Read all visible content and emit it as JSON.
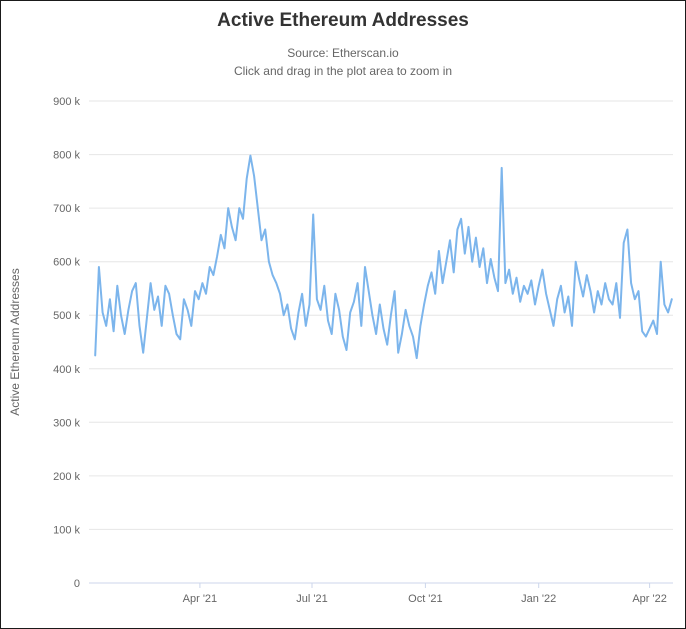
{
  "title": "Active Ethereum Addresses",
  "colors": {
    "line": "#7cb5ec",
    "grid": "#e6e6e6",
    "axis": "#ccd6eb",
    "title_text": "#333333",
    "label_text": "#666666",
    "background": "#ffffff"
  },
  "chart_data": {
    "type": "line",
    "title": "Active Ethereum Addresses",
    "subtitle": [
      "Source: Etherscan.io",
      "Click and drag in the plot area to zoom in"
    ],
    "xlabel": "",
    "ylabel": "Active Ethereum Addresses",
    "unit": "thousands of addresses (values below are in k)",
    "legend": "none",
    "grid": true,
    "ylim": [
      0,
      900
    ],
    "yticks": [
      {
        "value": 0,
        "label": "0"
      },
      {
        "value": 100,
        "label": "100 k"
      },
      {
        "value": 200,
        "label": "200 k"
      },
      {
        "value": 300,
        "label": "300 k"
      },
      {
        "value": 400,
        "label": "400 k"
      },
      {
        "value": 500,
        "label": "500 k"
      },
      {
        "value": 600,
        "label": "600 k"
      },
      {
        "value": 700,
        "label": "700 k"
      },
      {
        "value": 800,
        "label": "800 k"
      },
      {
        "value": 900,
        "label": "900 k"
      }
    ],
    "x_range": [
      "2021-01-01",
      "2022-04-20"
    ],
    "xticks": [
      {
        "date": "2021-04-01",
        "label": "Apr '21"
      },
      {
        "date": "2021-07-01",
        "label": "Jul '21"
      },
      {
        "date": "2021-10-01",
        "label": "Oct '21"
      },
      {
        "date": "2022-01-01",
        "label": "Jan '22"
      },
      {
        "date": "2022-04-01",
        "label": "Apr '22"
      }
    ],
    "series": [
      {
        "name": "Active Ethereum Addresses",
        "points": [
          [
            "2021-01-06",
            425
          ],
          [
            "2021-01-09",
            590
          ],
          [
            "2021-01-12",
            505
          ],
          [
            "2021-01-15",
            480
          ],
          [
            "2021-01-18",
            530
          ],
          [
            "2021-01-21",
            470
          ],
          [
            "2021-01-24",
            555
          ],
          [
            "2021-01-27",
            500
          ],
          [
            "2021-01-30",
            465
          ],
          [
            "2021-02-02",
            510
          ],
          [
            "2021-02-05",
            545
          ],
          [
            "2021-02-08",
            560
          ],
          [
            "2021-02-11",
            480
          ],
          [
            "2021-02-14",
            430
          ],
          [
            "2021-02-17",
            495
          ],
          [
            "2021-02-20",
            560
          ],
          [
            "2021-02-23",
            510
          ],
          [
            "2021-02-26",
            535
          ],
          [
            "2021-03-01",
            480
          ],
          [
            "2021-03-04",
            555
          ],
          [
            "2021-03-07",
            540
          ],
          [
            "2021-03-10",
            500
          ],
          [
            "2021-03-13",
            465
          ],
          [
            "2021-03-16",
            455
          ],
          [
            "2021-03-19",
            530
          ],
          [
            "2021-03-22",
            510
          ],
          [
            "2021-03-25",
            480
          ],
          [
            "2021-03-28",
            545
          ],
          [
            "2021-03-31",
            530
          ],
          [
            "2021-04-03",
            560
          ],
          [
            "2021-04-06",
            540
          ],
          [
            "2021-04-09",
            590
          ],
          [
            "2021-04-12",
            575
          ],
          [
            "2021-04-15",
            610
          ],
          [
            "2021-04-18",
            650
          ],
          [
            "2021-04-21",
            625
          ],
          [
            "2021-04-24",
            700
          ],
          [
            "2021-04-27",
            665
          ],
          [
            "2021-04-30",
            640
          ],
          [
            "2021-05-03",
            700
          ],
          [
            "2021-05-06",
            680
          ],
          [
            "2021-05-09",
            755
          ],
          [
            "2021-05-12",
            798
          ],
          [
            "2021-05-15",
            760
          ],
          [
            "2021-05-18",
            700
          ],
          [
            "2021-05-21",
            640
          ],
          [
            "2021-05-24",
            660
          ],
          [
            "2021-05-27",
            600
          ],
          [
            "2021-05-30",
            575
          ],
          [
            "2021-06-02",
            560
          ],
          [
            "2021-06-05",
            540
          ],
          [
            "2021-06-08",
            500
          ],
          [
            "2021-06-11",
            520
          ],
          [
            "2021-06-14",
            475
          ],
          [
            "2021-06-17",
            455
          ],
          [
            "2021-06-20",
            505
          ],
          [
            "2021-06-23",
            540
          ],
          [
            "2021-06-26",
            480
          ],
          [
            "2021-06-29",
            520
          ],
          [
            "2021-07-02",
            688
          ],
          [
            "2021-07-05",
            530
          ],
          [
            "2021-07-08",
            510
          ],
          [
            "2021-07-11",
            555
          ],
          [
            "2021-07-14",
            490
          ],
          [
            "2021-07-17",
            465
          ],
          [
            "2021-07-20",
            540
          ],
          [
            "2021-07-23",
            510
          ],
          [
            "2021-07-26",
            460
          ],
          [
            "2021-07-29",
            435
          ],
          [
            "2021-08-01",
            505
          ],
          [
            "2021-08-04",
            525
          ],
          [
            "2021-08-07",
            560
          ],
          [
            "2021-08-10",
            480
          ],
          [
            "2021-08-13",
            590
          ],
          [
            "2021-08-16",
            545
          ],
          [
            "2021-08-19",
            500
          ],
          [
            "2021-08-22",
            465
          ],
          [
            "2021-08-25",
            520
          ],
          [
            "2021-08-28",
            475
          ],
          [
            "2021-08-31",
            445
          ],
          [
            "2021-09-03",
            500
          ],
          [
            "2021-09-06",
            545
          ],
          [
            "2021-09-09",
            430
          ],
          [
            "2021-09-12",
            465
          ],
          [
            "2021-09-15",
            510
          ],
          [
            "2021-09-18",
            480
          ],
          [
            "2021-09-21",
            460
          ],
          [
            "2021-09-24",
            420
          ],
          [
            "2021-09-27",
            480
          ],
          [
            "2021-09-30",
            520
          ],
          [
            "2021-10-03",
            555
          ],
          [
            "2021-10-06",
            580
          ],
          [
            "2021-10-09",
            540
          ],
          [
            "2021-10-12",
            620
          ],
          [
            "2021-10-15",
            560
          ],
          [
            "2021-10-18",
            600
          ],
          [
            "2021-10-21",
            640
          ],
          [
            "2021-10-24",
            580
          ],
          [
            "2021-10-27",
            660
          ],
          [
            "2021-10-30",
            680
          ],
          [
            "2021-11-02",
            615
          ],
          [
            "2021-11-05",
            665
          ],
          [
            "2021-11-08",
            600
          ],
          [
            "2021-11-11",
            645
          ],
          [
            "2021-11-14",
            590
          ],
          [
            "2021-11-17",
            625
          ],
          [
            "2021-11-20",
            560
          ],
          [
            "2021-11-23",
            605
          ],
          [
            "2021-11-26",
            570
          ],
          [
            "2021-11-29",
            545
          ],
          [
            "2021-12-02",
            775
          ],
          [
            "2021-12-05",
            560
          ],
          [
            "2021-12-08",
            585
          ],
          [
            "2021-12-11",
            540
          ],
          [
            "2021-12-14",
            570
          ],
          [
            "2021-12-17",
            525
          ],
          [
            "2021-12-20",
            555
          ],
          [
            "2021-12-23",
            540
          ],
          [
            "2021-12-26",
            565
          ],
          [
            "2021-12-29",
            520
          ],
          [
            "2022-01-01",
            555
          ],
          [
            "2022-01-04",
            585
          ],
          [
            "2022-01-07",
            540
          ],
          [
            "2022-01-10",
            510
          ],
          [
            "2022-01-13",
            480
          ],
          [
            "2022-01-16",
            530
          ],
          [
            "2022-01-19",
            555
          ],
          [
            "2022-01-22",
            505
          ],
          [
            "2022-01-25",
            535
          ],
          [
            "2022-01-28",
            480
          ],
          [
            "2022-01-31",
            600
          ],
          [
            "2022-02-03",
            565
          ],
          [
            "2022-02-06",
            535
          ],
          [
            "2022-02-09",
            575
          ],
          [
            "2022-02-12",
            545
          ],
          [
            "2022-02-15",
            505
          ],
          [
            "2022-02-18",
            545
          ],
          [
            "2022-02-21",
            520
          ],
          [
            "2022-02-24",
            560
          ],
          [
            "2022-02-27",
            530
          ],
          [
            "2022-03-02",
            520
          ],
          [
            "2022-03-05",
            560
          ],
          [
            "2022-03-08",
            495
          ],
          [
            "2022-03-11",
            635
          ],
          [
            "2022-03-14",
            660
          ],
          [
            "2022-03-17",
            560
          ],
          [
            "2022-03-20",
            530
          ],
          [
            "2022-03-23",
            545
          ],
          [
            "2022-03-26",
            470
          ],
          [
            "2022-03-29",
            460
          ],
          [
            "2022-04-01",
            475
          ],
          [
            "2022-04-04",
            490
          ],
          [
            "2022-04-07",
            465
          ],
          [
            "2022-04-10",
            600
          ],
          [
            "2022-04-13",
            520
          ],
          [
            "2022-04-16",
            505
          ],
          [
            "2022-04-19",
            530
          ]
        ]
      }
    ]
  }
}
